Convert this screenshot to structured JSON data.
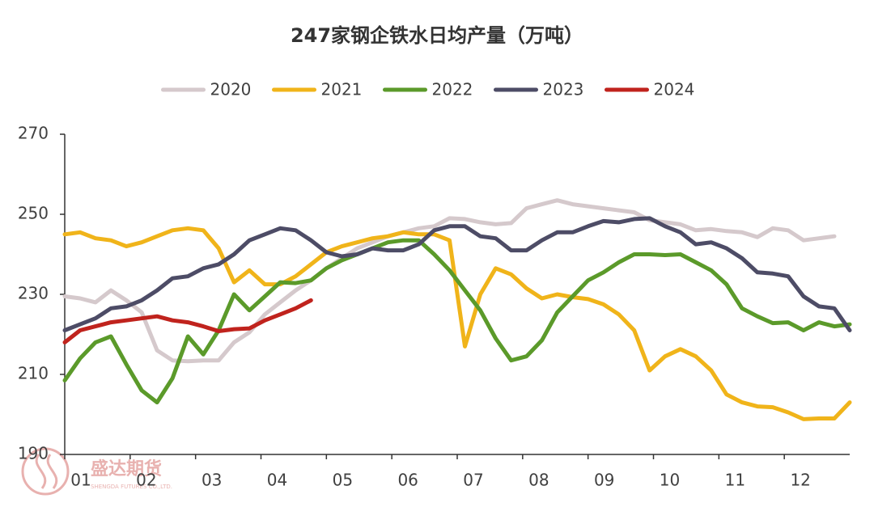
{
  "chart_data": {
    "type": "line",
    "title": "247家钢企铁水日均产量（万吨）",
    "watermark": "盛达期货",
    "watermark_sub": "SHENGDA FUTURES CO.,LTD.",
    "legend": "top",
    "x": [
      1,
      2,
      3,
      4,
      5,
      6,
      7,
      8,
      9,
      10,
      11,
      12,
      13,
      14,
      15,
      16,
      17,
      18,
      19,
      20,
      21,
      22,
      23,
      24,
      25,
      26,
      27,
      28,
      29,
      30,
      31,
      32,
      33,
      34,
      35,
      36,
      37,
      38,
      39,
      40,
      41,
      42,
      43,
      44,
      45,
      46,
      47,
      48,
      49,
      50,
      51,
      52
    ],
    "xlim": [
      1,
      52
    ],
    "xticks": [
      {
        "value": 1,
        "label": "01"
      },
      {
        "value": 5.25,
        "label": "02"
      },
      {
        "value": 9.5,
        "label": "03"
      },
      {
        "value": 13.75,
        "label": "04"
      },
      {
        "value": 18,
        "label": "05"
      },
      {
        "value": 22.25,
        "label": "06"
      },
      {
        "value": 26.5,
        "label": "07"
      },
      {
        "value": 30.75,
        "label": "08"
      },
      {
        "value": 35,
        "label": "09"
      },
      {
        "value": 39.25,
        "label": "10"
      },
      {
        "value": 43.5,
        "label": "11"
      },
      {
        "value": 47.75,
        "label": "12"
      }
    ],
    "ylim": [
      190,
      270
    ],
    "yticks": [
      190,
      210,
      230,
      250,
      270
    ],
    "series": [
      {
        "name": "2020",
        "color": "#d5c9cc",
        "values": [
          229.5,
          229,
          228,
          231,
          228.5,
          225.5,
          216,
          213.5,
          213.3,
          213.5,
          213.5,
          218,
          220.5,
          225,
          228,
          231,
          233.5,
          236.5,
          239,
          241.5,
          243,
          244.5,
          245.5,
          246.5,
          247,
          249,
          248.8,
          248,
          247.5,
          247.8,
          251.5,
          252.5,
          253.5,
          252.5,
          252,
          251.5,
          251,
          250.5,
          248.5,
          248,
          247.5,
          246,
          246.3,
          245.8,
          245.5,
          244.3,
          246.5,
          246,
          243.5,
          244,
          244.5,
          null
        ]
      },
      {
        "name": "2021",
        "color": "#f0b41a",
        "values": [
          245,
          245.5,
          244,
          243.5,
          242,
          243,
          244.5,
          246,
          246.5,
          246,
          241.5,
          233,
          236,
          232.5,
          232.5,
          234.5,
          237.5,
          240.5,
          242,
          243,
          244,
          244.5,
          245.5,
          245,
          245,
          243.5,
          217,
          230,
          236.5,
          235,
          231.5,
          229,
          230,
          229.3,
          228.8,
          227.5,
          225,
          221,
          211,
          214.5,
          216.3,
          214.5,
          211,
          205,
          203,
          202,
          201.8,
          200.5,
          198.8,
          199,
          199,
          203
        ]
      },
      {
        "name": "2022",
        "color": "#5b9a2a",
        "values": [
          208.5,
          214,
          218,
          219.5,
          212.5,
          206,
          203,
          209,
          219.5,
          215,
          221,
          230,
          226,
          229.5,
          233,
          232.8,
          233.5,
          236.5,
          238.5,
          240,
          241.5,
          243,
          243.5,
          243.5,
          240,
          236,
          231,
          226,
          219,
          213.5,
          214.5,
          218.5,
          225.5,
          229.5,
          233.5,
          235.5,
          238,
          240,
          240,
          239.8,
          240,
          238,
          236,
          232.5,
          226.5,
          224.5,
          222.8,
          223,
          221,
          223,
          222,
          222.5
        ]
      },
      {
        "name": "2023",
        "color": "#4d4c66",
        "values": [
          221,
          222.5,
          224,
          226.5,
          227,
          228.5,
          231,
          234,
          234.5,
          236.5,
          237.5,
          240,
          243.5,
          245,
          246.5,
          246,
          243.5,
          240.5,
          239.5,
          240,
          241.5,
          241,
          241,
          242.5,
          246,
          247,
          247,
          244.5,
          244,
          241,
          241,
          243.5,
          245.5,
          245.5,
          247,
          248.3,
          248,
          248.8,
          249,
          247,
          245.5,
          242.5,
          243,
          241.5,
          239,
          235.5,
          235.2,
          234.5,
          229.5,
          227,
          226.5,
          221
        ]
      },
      {
        "name": "2024",
        "color": "#c0231d",
        "values": [
          218,
          221,
          222,
          223,
          223.5,
          224,
          224.5,
          223.5,
          223,
          222,
          220.8,
          221.3,
          221.5,
          223.5,
          225,
          226.5,
          228.5,
          null,
          null,
          null,
          null,
          null,
          null,
          null,
          null,
          null,
          null,
          null,
          null,
          null,
          null,
          null,
          null,
          null,
          null,
          null,
          null,
          null,
          null,
          null,
          null,
          null,
          null,
          null,
          null,
          null,
          null,
          null,
          null,
          null,
          null,
          null
        ]
      }
    ]
  }
}
